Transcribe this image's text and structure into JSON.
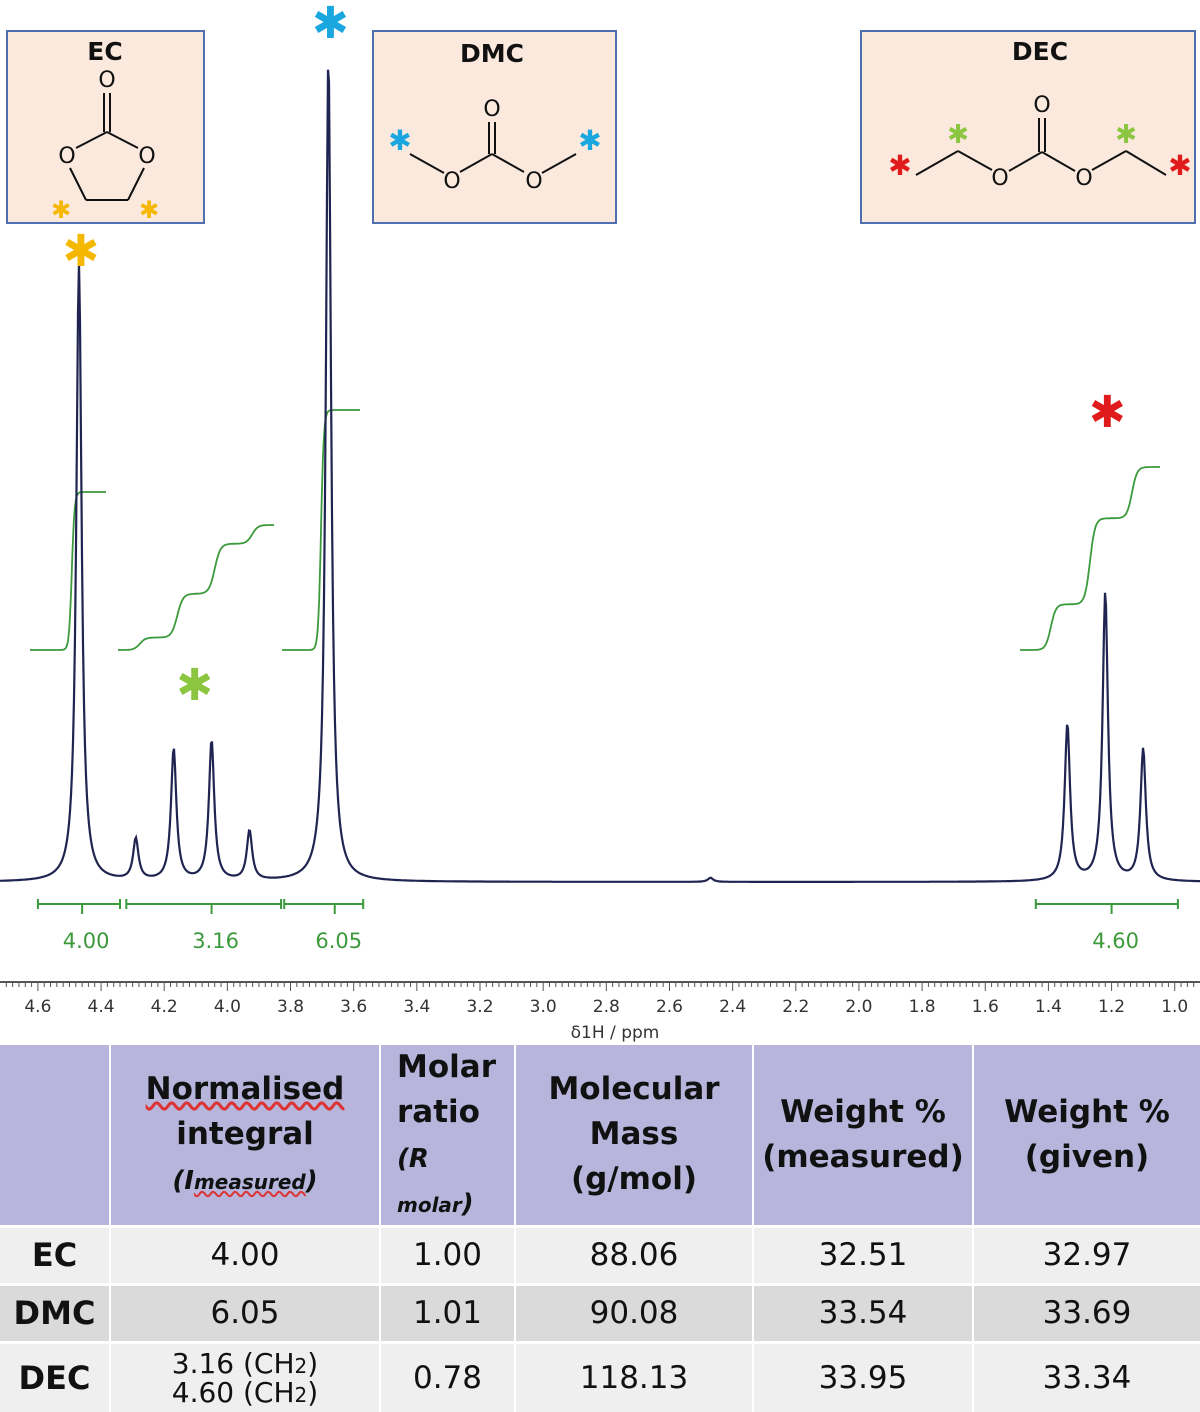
{
  "chart_data": {
    "type": "line",
    "title": "",
    "xlabel": "δ1H / ppm",
    "ylabel": "",
    "xlim": [
      4.72,
      0.92
    ],
    "x_reversed": true,
    "x_ticks": [
      "4.6",
      "4.4",
      "4.2",
      "4.0",
      "3.8",
      "3.6",
      "3.4",
      "3.2",
      "3.0",
      "2.8",
      "2.6",
      "2.4",
      "2.2",
      "2.0",
      "1.8",
      "1.6",
      "1.4",
      "1.2",
      "1.0"
    ],
    "grid": false,
    "peaks": [
      {
        "ppm": 4.47,
        "height": 0.75
      },
      {
        "ppm": 4.29,
        "height": 0.05
      },
      {
        "ppm": 4.17,
        "height": 0.16
      },
      {
        "ppm": 4.05,
        "height": 0.17
      },
      {
        "ppm": 3.93,
        "height": 0.06
      },
      {
        "ppm": 3.68,
        "height": 1.0
      },
      {
        "ppm": 2.47,
        "height": 0.005
      },
      {
        "ppm": 1.34,
        "height": 0.19
      },
      {
        "ppm": 1.22,
        "height": 0.35
      },
      {
        "ppm": 1.1,
        "height": 0.16
      }
    ],
    "integrals": [
      {
        "range": [
          4.6,
          4.34
        ],
        "value": "4.00",
        "label_ppm": 4.46
      },
      {
        "range": [
          4.32,
          3.83
        ],
        "value": "3.16",
        "label_ppm": 4.05
      },
      {
        "range": [
          3.82,
          3.57
        ],
        "value": "6.05",
        "label_ppm": 3.66
      },
      {
        "range": [
          1.44,
          0.99
        ],
        "value": "4.60",
        "label_ppm": 1.2
      }
    ],
    "peak_markers": [
      {
        "ppm": 4.47,
        "color": "#f5b800",
        "group": "EC"
      },
      {
        "ppm": 3.68,
        "color": "#1aa6df",
        "group": "DMC"
      },
      {
        "ppm": 4.11,
        "color": "#8cc640",
        "group": "DEC CH2"
      },
      {
        "ppm": 1.22,
        "color": "#e01b1b",
        "group": "DEC CH3"
      }
    ]
  },
  "molecules": {
    "ec": {
      "name": "EC",
      "atom_o": "O"
    },
    "dmc": {
      "name": "DMC",
      "atom_o": "O"
    },
    "dec": {
      "name": "DEC",
      "atom_o": "O"
    }
  },
  "star_glyph": "✱",
  "colors": {
    "spectrum": "#1f2550",
    "integral": "#3c9a3c",
    "ec_marker": "#f5b800",
    "dmc_marker": "#1aa6df",
    "dec_ch2_marker": "#8cc640",
    "dec_ch3_marker": "#e01b1b",
    "table_header": "#b7b5dc"
  },
  "table": {
    "headers": {
      "col1_line1": "Normalised",
      "col1_line2": "integral",
      "col1_symbol": "(I",
      "col1_sub": "measured",
      "col1_close": ")",
      "col2_line1": "Molar",
      "col2_line2": "ratio",
      "col2_symbol": "(R",
      "col2_sub": " molar",
      "col2_close": ")",
      "col3_line1": "Molecular",
      "col3_line2": "Mass",
      "col3_line3": "(g/mol)",
      "col4_line1": "Weight %",
      "col4_line2": "(measured)",
      "col5_line1": "Weight %",
      "col5_line2": "(given)"
    },
    "rows": [
      {
        "name": "EC",
        "integral": "4.00",
        "ratio": "1.00",
        "mass": "88.06",
        "wt_measured": "32.51",
        "wt_given": "32.97"
      },
      {
        "name": "DMC",
        "integral": "6.05",
        "ratio": "1.01",
        "mass": "90.08",
        "wt_measured": "33.54",
        "wt_given": "33.69"
      },
      {
        "name": "DEC",
        "integral_line1": "3.16 (CH",
        "integral_sub1": "2",
        "integral_close1": ")",
        "integral_line2": "4.60 (CH",
        "integral_sub2": "2",
        "integral_close2": ")",
        "ratio": "0.78",
        "mass": "118.13",
        "wt_measured": "33.95",
        "wt_given": "33.34"
      }
    ]
  }
}
